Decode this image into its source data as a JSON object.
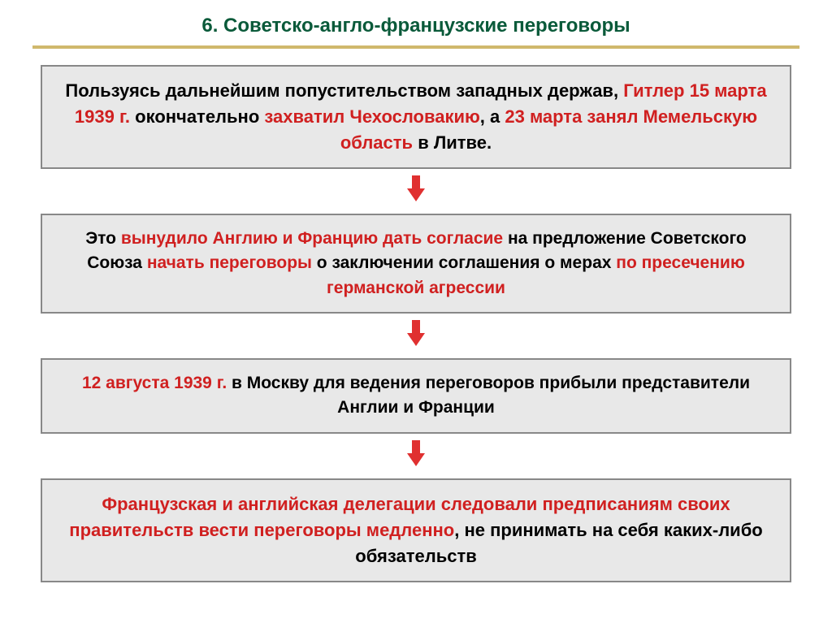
{
  "title": {
    "text": "6. Советско-англо-французские переговоры",
    "color": "#0a5a3a",
    "fontsize": 24,
    "underline_color": "#d0b86c"
  },
  "boxes": {
    "box1": {
      "fontsize": 22,
      "segments": [
        {
          "text": "Пользуясь дальнейшим попустительством западных держав, ",
          "color": "black"
        },
        {
          "text": "Гитлер 15 марта 1939 г. ",
          "color": "red"
        },
        {
          "text": "окончательно ",
          "color": "black"
        },
        {
          "text": "захватил Чехословакию",
          "color": "red"
        },
        {
          "text": ", а ",
          "color": "black"
        },
        {
          "text": "23 марта занял Мемельскую область ",
          "color": "red"
        },
        {
          "text": "в Литве.",
          "color": "black"
        }
      ]
    },
    "box2": {
      "fontsize": 21,
      "segments": [
        {
          "text": "Это ",
          "color": "black"
        },
        {
          "text": "вынудило Англию и Францию дать согласие ",
          "color": "red"
        },
        {
          "text": "на предложение Советского Союза ",
          "color": "black"
        },
        {
          "text": "начать переговоры ",
          "color": "red"
        },
        {
          "text": "о заключении соглашения о мерах ",
          "color": "black"
        },
        {
          "text": "по пресечению германской агрессии",
          "color": "red"
        }
      ]
    },
    "box3": {
      "fontsize": 21,
      "segments": [
        {
          "text": "12 августа 1939 г. ",
          "color": "red"
        },
        {
          "text": "в Москву для ведения переговоров прибыли представители Англии и Франции",
          "color": "black"
        }
      ]
    },
    "box4": {
      "fontsize": 22,
      "segments": [
        {
          "text": "Французская и английская делегации следовали предписаниям своих правительств вести переговоры медленно",
          "color": "red"
        },
        {
          "text": ", ",
          "color": "black"
        },
        {
          "text": "не принимать на себя каких-либо обязательств",
          "color": "black"
        }
      ]
    }
  },
  "arrow": {
    "color": "#e03030"
  },
  "box_style": {
    "background": "#e8e8e8",
    "border_color": "#888888"
  }
}
